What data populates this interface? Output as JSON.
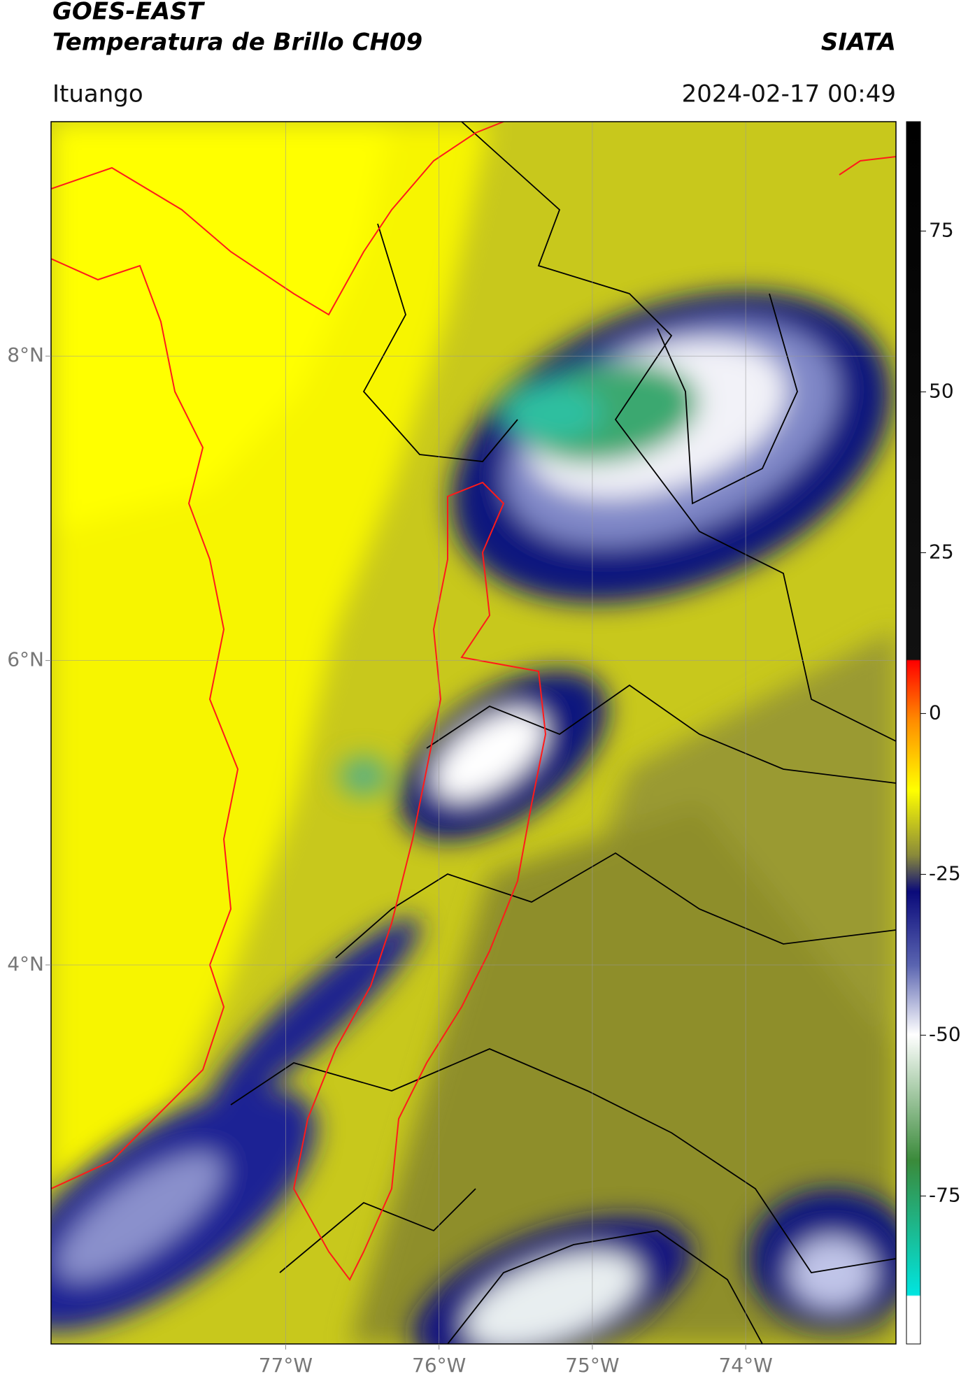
{
  "header": {
    "satellite": "GOES-EAST",
    "product": "Temperatura de Brillo CH09",
    "agency": "SIATA",
    "location": "Ituango",
    "datetime": "2024-02-17 00:49"
  },
  "chart_data": {
    "type": "map",
    "xlim": [
      -78.53,
      -73.02
    ],
    "ylim": [
      1.51,
      9.54
    ],
    "xticks": [
      {
        "value": -77,
        "label": "77°W"
      },
      {
        "value": -76,
        "label": "76°W"
      },
      {
        "value": -75,
        "label": "75°W"
      },
      {
        "value": -74,
        "label": "74°W"
      }
    ],
    "yticks": [
      {
        "value": 8,
        "label": "8°N"
      },
      {
        "value": 6,
        "label": "6°N"
      },
      {
        "value": 4,
        "label": "4°N"
      }
    ],
    "grid": true,
    "colorbar": {
      "clim": [
        -98,
        92
      ],
      "ticks": [
        75,
        50,
        25,
        0,
        -25,
        -50,
        -75
      ]
    }
  }
}
